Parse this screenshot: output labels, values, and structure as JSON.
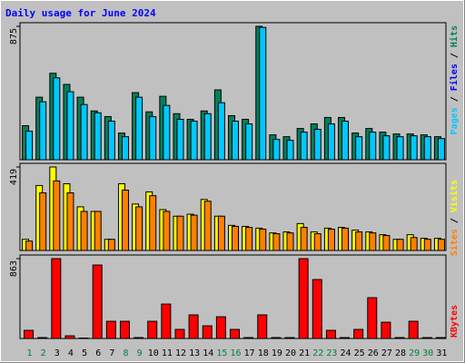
{
  "title": "Daily usage for June 2024",
  "categories": [
    "1",
    "2",
    "3",
    "4",
    "5",
    "6",
    "7",
    "8",
    "9",
    "10",
    "11",
    "12",
    "13",
    "14",
    "15",
    "16",
    "17",
    "18",
    "19",
    "20",
    "21",
    "22",
    "23",
    "24",
    "25",
    "26",
    "27",
    "28",
    "29",
    "30",
    "31"
  ],
  "category_colors": [
    "#008040",
    "#008040",
    "#000000",
    "#000000",
    "#000000",
    "#000000",
    "#000000",
    "#008040",
    "#008040",
    "#000000",
    "#000000",
    "#000000",
    "#000000",
    "#000000",
    "#008040",
    "#008040",
    "#000000",
    "#000000",
    "#000000",
    "#000000",
    "#000000",
    "#008040",
    "#008040",
    "#000000",
    "#000000",
    "#000000",
    "#000000",
    "#000000",
    "#008040",
    "#008040",
    "#000000"
  ],
  "chart_data": [
    {
      "type": "bar",
      "ylim": [
        0,
        875
      ],
      "yticks": [
        875
      ],
      "legend": [
        {
          "text": "Pages",
          "color": "#00c8ff"
        },
        {
          "text": " / ",
          "color": "#000000"
        },
        {
          "text": "Files",
          "color": "#0000ff"
        },
        {
          "text": " / ",
          "color": "#000000"
        },
        {
          "text": "Hits",
          "color": "#00805c"
        }
      ],
      "series": [
        {
          "name": "Hits",
          "color": "#00805c",
          "values": [
            223,
            410,
            567,
            494,
            410,
            320,
            283,
            175,
            440,
            314,
            416,
            302,
            265,
            320,
            458,
            289,
            265,
            875,
            163,
            151,
            205,
            235,
            277,
            277,
            175,
            205,
            181,
            169,
            169,
            163,
            151
          ]
        },
        {
          "name": "Pages",
          "color": "#00c8ff",
          "values": [
            187,
            380,
            537,
            446,
            362,
            308,
            253,
            151,
            410,
            283,
            356,
            265,
            253,
            302,
            374,
            253,
            235,
            868,
            133,
            127,
            181,
            199,
            235,
            253,
            151,
            181,
            157,
            151,
            157,
            151,
            139
          ]
        }
      ]
    },
    {
      "type": "bar",
      "ylim": [
        0,
        419
      ],
      "yticks": [
        419
      ],
      "legend": [
        {
          "text": "Sites",
          "color": "#ff8000"
        },
        {
          "text": " / ",
          "color": "#000000"
        },
        {
          "text": "Visits",
          "color": "#ffff00"
        }
      ],
      "series": [
        {
          "name": "Visits",
          "color": "#ffff00",
          "values": [
            56,
            326,
            419,
            335,
            219,
            196,
            56,
            335,
            233,
            294,
            205,
            172,
            182,
            256,
            172,
            126,
            121,
            112,
            88,
            93,
            135,
            93,
            112,
            116,
            102,
            93,
            79,
            56,
            79,
            61,
            61
          ]
        },
        {
          "name": "Sites",
          "color": "#ff8000",
          "values": [
            47,
            289,
            349,
            289,
            196,
            196,
            56,
            303,
            219,
            275,
            196,
            172,
            177,
            247,
            172,
            121,
            116,
            107,
            84,
            88,
            116,
            84,
            107,
            112,
            93,
            88,
            75,
            56,
            65,
            56,
            56
          ]
        }
      ]
    },
    {
      "type": "bar",
      "ylim": [
        0,
        863
      ],
      "yticks": [
        863
      ],
      "legend": [
        {
          "text": "KBytes",
          "color": "#ff0000"
        }
      ],
      "series": [
        {
          "name": "KBytes",
          "color": "#ff0000",
          "values": [
            88,
            10,
            863,
            29,
            5,
            794,
            186,
            186,
            10,
            186,
            372,
            98,
            255,
            137,
            235,
            98,
            10,
            255,
            10,
            10,
            863,
            637,
            88,
            10,
            98,
            441,
            176,
            10,
            186,
            10,
            10
          ]
        }
      ]
    }
  ]
}
